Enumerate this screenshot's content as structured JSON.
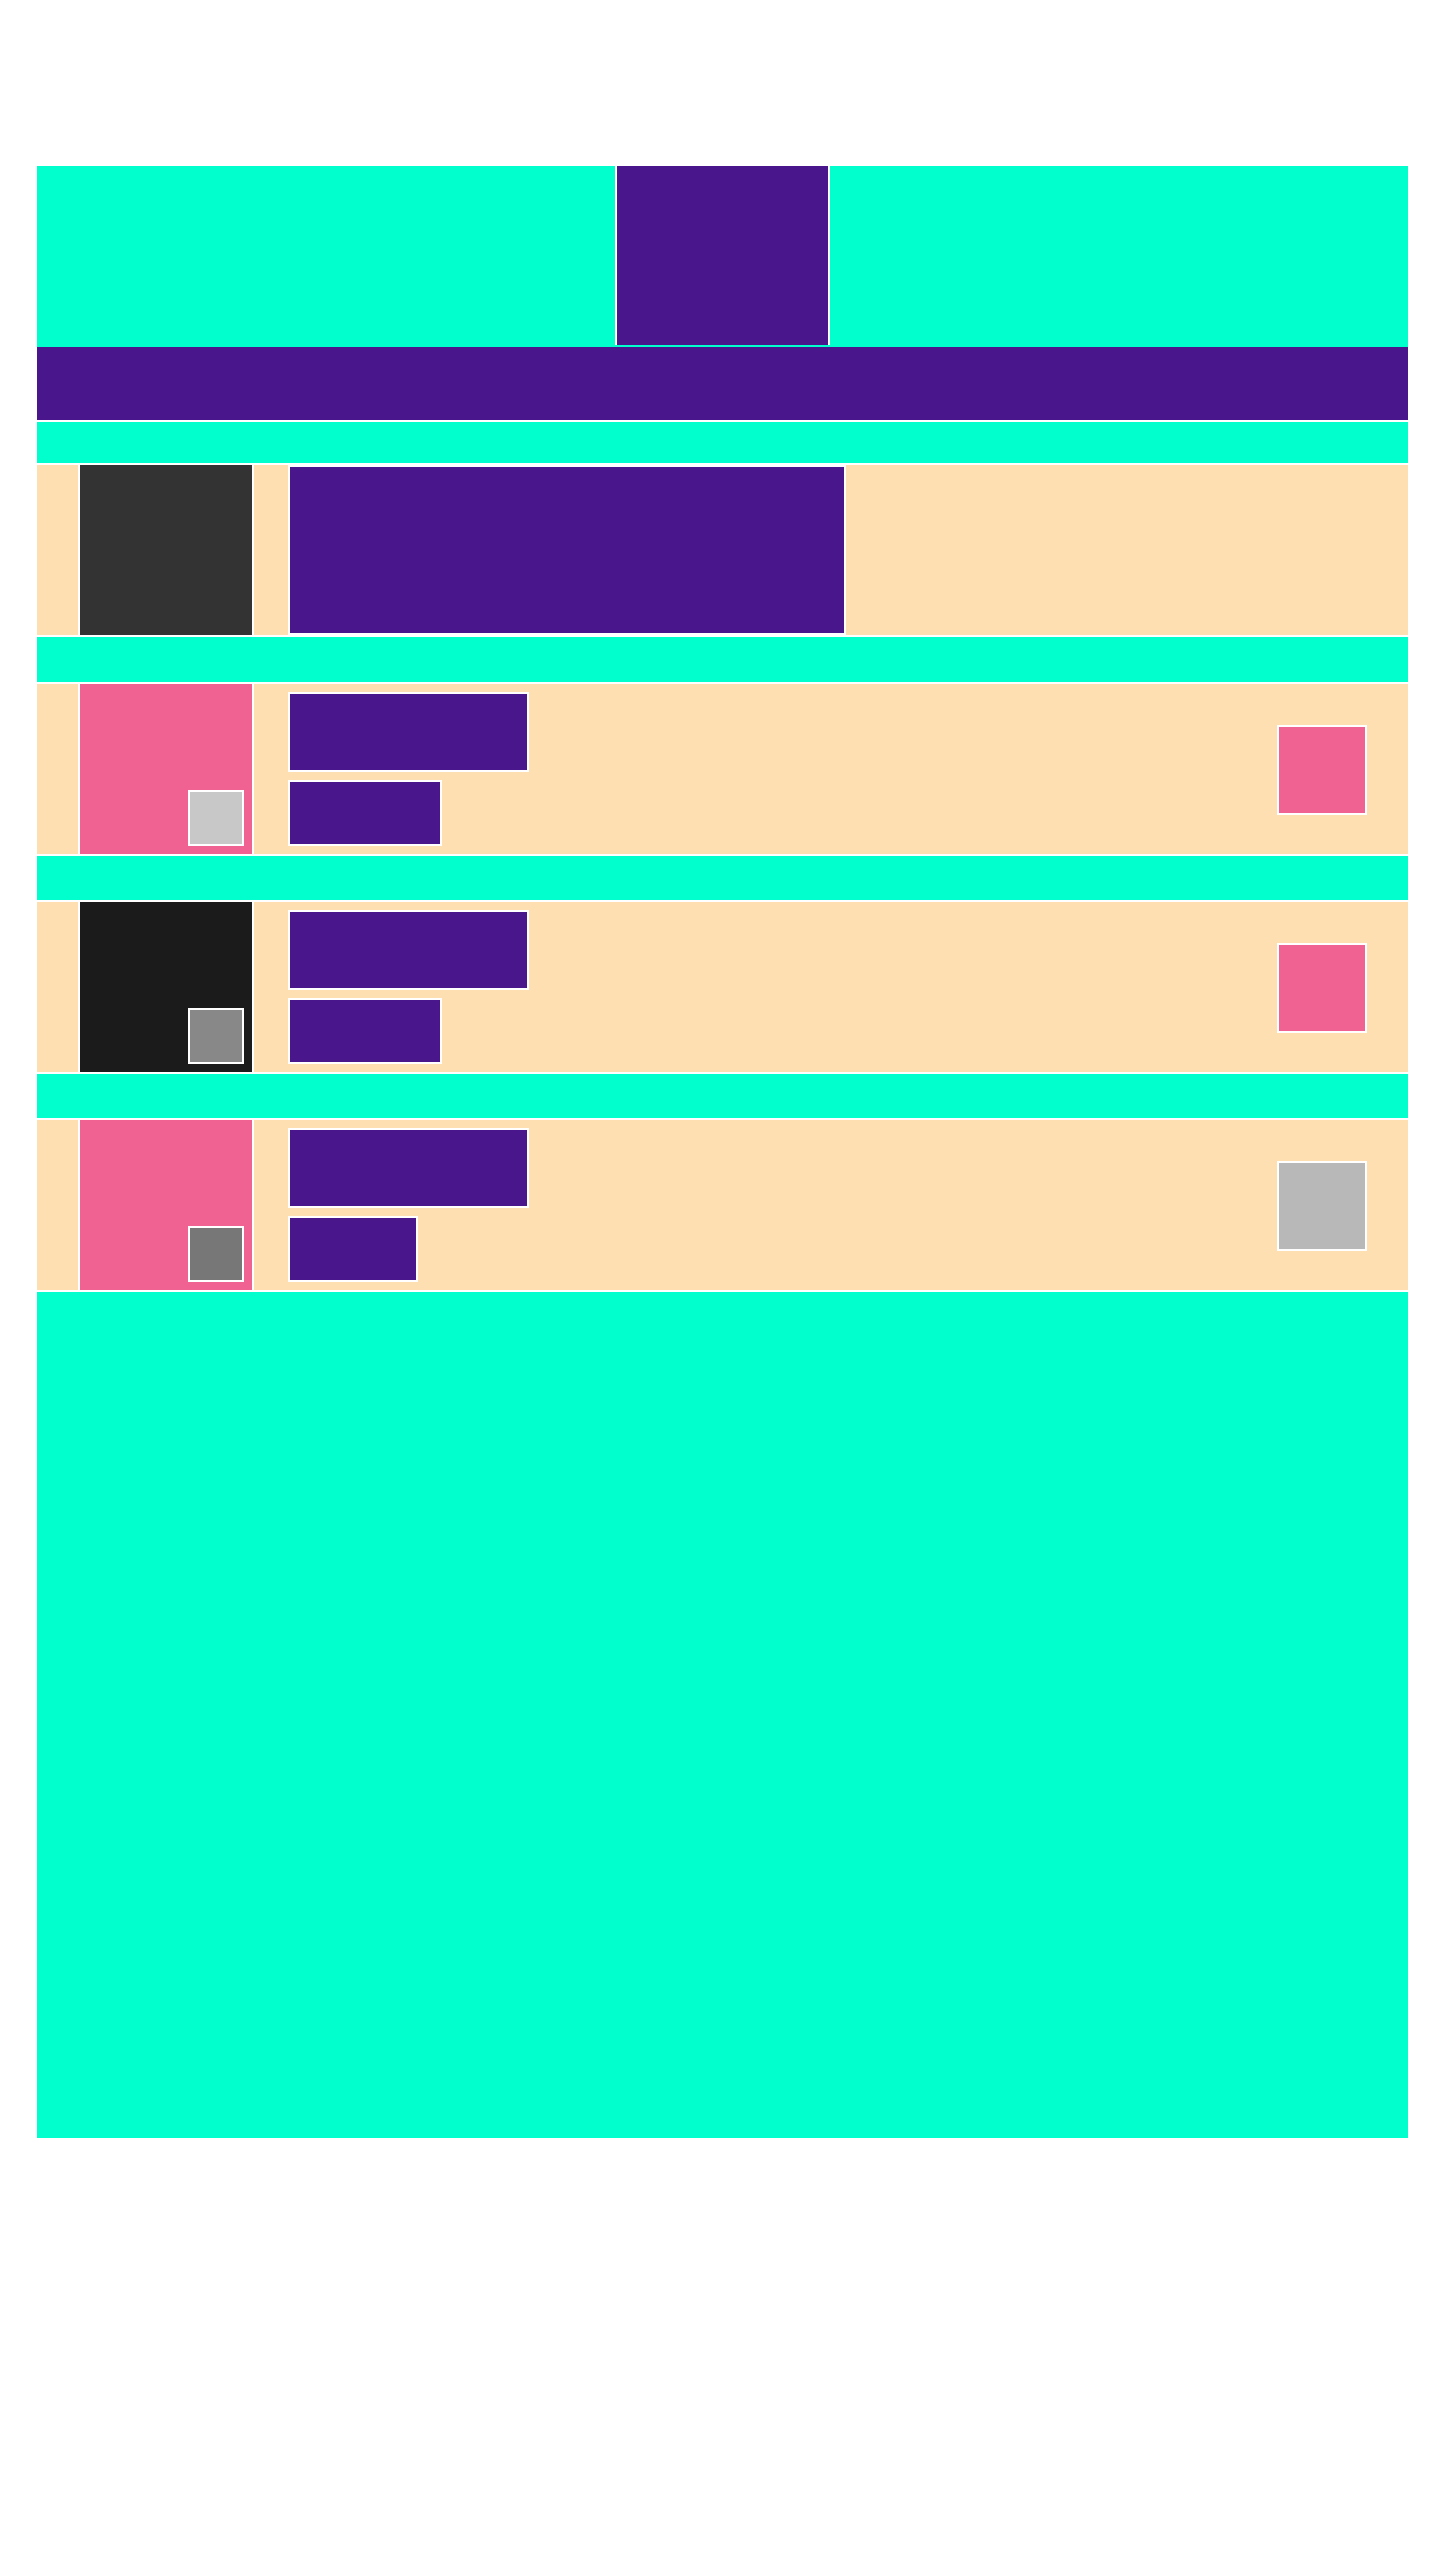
{
  "colors": {
    "teal": "#00ffcc",
    "purple": "#4a168c",
    "peach": "#fddfb1",
    "pink": "#f06292",
    "dark_gray": "#333333",
    "near_black": "#1b1b1b",
    "light_gray": "#c8c8c8",
    "mid_gray": "#888888",
    "dim_gray": "#777777",
    "tile_gray": "#b8b8b8"
  },
  "feature_item": {
    "thumbnail_color": "#333333"
  },
  "list_items": [
    {
      "thumbnail_color": "#f06292",
      "badge_color": "#c8c8c8",
      "action_color": "#f06292"
    },
    {
      "thumbnail_color": "#1b1b1b",
      "badge_color": "#888888",
      "action_color": "#f06292"
    },
    {
      "thumbnail_color": "#f06292",
      "badge_color": "#777777",
      "action_color": "#b8b8b8"
    }
  ]
}
